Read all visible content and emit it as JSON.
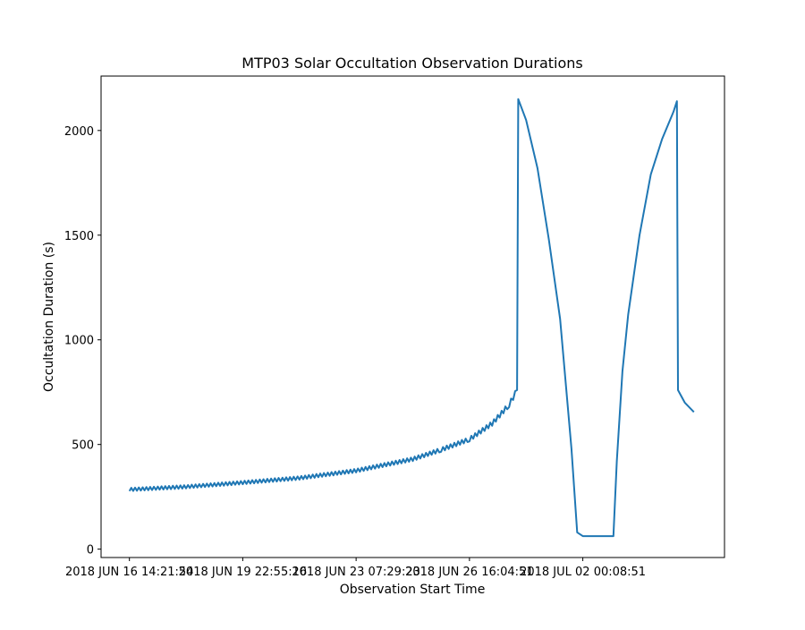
{
  "chart_data": {
    "type": "line",
    "title": "MTP03 Solar Occultation Observation Durations",
    "xlabel": "Observation Start Time",
    "ylabel": "Occultation Duration (s)",
    "x_tick_labels": [
      "2018 JUN 16 14:21:54",
      "2018 JUN 19 22:55:16",
      "2018 JUN 23 07:29:23",
      "2018 JUN 26 16:04:51",
      "2018 JUL 02 00:08:51"
    ],
    "x_tick_values": [
      0,
      1,
      2,
      3,
      4
    ],
    "xlim": [
      -0.25,
      5.25
    ],
    "ylim": [
      -40,
      2260
    ],
    "y_ticks": [
      0,
      500,
      1000,
      1500,
      2000
    ],
    "grid": false,
    "series": [
      {
        "color": "#1f77b4",
        "x": [
          0.0,
          0.5,
          1.0,
          1.5,
          2.0,
          2.5,
          2.75,
          3.0,
          3.2,
          3.35,
          3.42,
          3.43,
          3.5,
          3.6,
          3.7,
          3.8,
          3.9,
          3.95,
          4.0,
          4.02,
          4.1,
          4.2,
          4.27,
          4.3,
          4.35,
          4.4,
          4.5,
          4.6,
          4.7,
          4.8,
          4.83,
          4.84,
          4.9,
          4.98
        ],
        "y": [
          285,
          298,
          318,
          340,
          375,
          430,
          475,
          525,
          600,
          690,
          760,
          2150,
          2050,
          1820,
          1480,
          1100,
          480,
          80,
          62,
          62,
          62,
          62,
          62,
          420,
          850,
          1120,
          1500,
          1790,
          1960,
          2090,
          2140,
          760,
          700,
          655
        ]
      }
    ]
  }
}
